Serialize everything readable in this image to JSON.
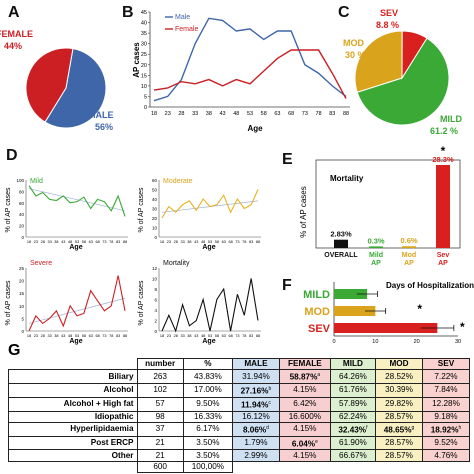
{
  "panels": {
    "A": "A",
    "B": "B",
    "C": "C",
    "D": "D",
    "E": "E",
    "F": "F",
    "G": "G"
  },
  "colors": {
    "male": "#3f66a8",
    "female": "#cc1f24",
    "mild": "#3aa935",
    "mod": "#d9a41c",
    "sev": "#d8201f",
    "black": "#111111"
  },
  "chart_data": [
    {
      "id": "A",
      "type": "pie",
      "labels": [
        "FEMALE",
        "MALE"
      ],
      "values": [
        44,
        56
      ],
      "value_labels": [
        "44%",
        "56%"
      ]
    },
    {
      "id": "B",
      "type": "line",
      "x": [
        18,
        23,
        28,
        33,
        38,
        43,
        48,
        53,
        58,
        63,
        68,
        73,
        78,
        83,
        88
      ],
      "xlabel": "Age",
      "ylabel": "AP cases",
      "ylim": [
        0,
        45
      ],
      "yticks": [
        0,
        5,
        10,
        15,
        20,
        25,
        30,
        35,
        40,
        45
      ],
      "series": [
        {
          "name": "Male",
          "values": [
            3,
            5,
            13,
            30,
            42,
            41,
            36,
            37,
            32,
            36,
            36,
            20,
            16,
            10,
            5
          ]
        },
        {
          "name": "Female",
          "values": [
            8,
            9,
            12,
            11,
            13,
            10,
            13,
            11,
            17,
            23,
            27,
            27,
            27,
            16,
            4
          ]
        }
      ],
      "legend": "top-left"
    },
    {
      "id": "C",
      "type": "pie",
      "labels": [
        "MILD",
        "MOD",
        "SEV"
      ],
      "values": [
        61.2,
        30,
        8.8
      ],
      "value_labels": [
        "61.2 %",
        "30 %",
        "8.8 %"
      ]
    },
    {
      "id": "D1",
      "type": "line",
      "title": "Mild",
      "x": [
        18,
        23,
        28,
        33,
        38,
        43,
        48,
        53,
        58,
        63,
        68,
        73,
        78,
        83,
        88
      ],
      "xlabel": "Age",
      "ylabel": "% of AP cases",
      "values": [
        90,
        72,
        78,
        66,
        64,
        72,
        60,
        62,
        70,
        50,
        66,
        62,
        46,
        72,
        36
      ],
      "trend": [
        85,
        46
      ]
    },
    {
      "id": "D2",
      "type": "line",
      "title": "Moderate",
      "x": [
        18,
        23,
        28,
        33,
        38,
        43,
        48,
        53,
        58,
        63,
        68,
        73,
        78,
        83,
        88
      ],
      "xlabel": "Age",
      "ylabel": "% of AP cases",
      "values": [
        20,
        32,
        26,
        34,
        38,
        28,
        40,
        32,
        34,
        44,
        26,
        40,
        30,
        34,
        50
      ],
      "trend": [
        26,
        38
      ]
    },
    {
      "id": "D3",
      "type": "line",
      "title": "Severe",
      "x": [
        18,
        23,
        28,
        33,
        38,
        43,
        48,
        53,
        58,
        63,
        68,
        73,
        78,
        83,
        88
      ],
      "xlabel": "Age",
      "ylabel": "% of AP cases",
      "values": [
        0,
        6,
        3,
        5,
        8,
        2,
        10,
        6,
        7,
        16,
        12,
        8,
        10,
        22,
        8
      ],
      "trend": [
        3,
        13
      ]
    },
    {
      "id": "D4",
      "type": "line",
      "title": "Mortality",
      "x": [
        18,
        23,
        28,
        33,
        38,
        43,
        48,
        53,
        58,
        63,
        68,
        73,
        78,
        83,
        88
      ],
      "xlabel": "Age",
      "ylabel": "% of AP cases",
      "values": [
        0,
        3,
        0,
        5,
        1,
        2,
        6,
        0,
        6,
        8,
        0,
        7,
        3,
        10,
        2
      ]
    },
    {
      "id": "E",
      "type": "bar",
      "title": "Mortality",
      "categories": [
        "OVERALL",
        "Mild AP",
        "Mod AP",
        "Sev AP"
      ],
      "values": [
        2.83,
        0.3,
        0.6,
        28.3
      ],
      "value_labels": [
        "2.83%",
        "0.3%",
        "0.6%",
        "28.3%"
      ],
      "ylabel": "% of AP cases",
      "ylim": [
        0,
        30
      ],
      "star": "*"
    },
    {
      "id": "F",
      "type": "bar",
      "orientation": "horizontal",
      "title": "Days of Hospitalization",
      "categories": [
        "MILD",
        "MOD",
        "SEV"
      ],
      "values": [
        8,
        10,
        25
      ],
      "errors": [
        2.5,
        2.5,
        4
      ],
      "xlim": [
        0,
        30
      ],
      "xticks": [
        0,
        10,
        20,
        30
      ],
      "star": "*"
    }
  ],
  "table": {
    "headers": [
      "",
      "number",
      "%",
      "MALE",
      "FEMALE",
      "MILD",
      "MOD",
      "SEV"
    ],
    "rows": [
      {
        "label": "Biliary",
        "number": "263",
        "pct": "43.83%",
        "male": "31.94%",
        "female": "58.87%",
        "female_sup": "a",
        "mild": "64.26%",
        "mod": "28.52%",
        "sev": "7.22%"
      },
      {
        "label": "Alcohol",
        "number": "102",
        "pct": "17.00%",
        "male": "27.16%",
        "male_sup": "b",
        "female": "4.15%",
        "mild": "61.76%",
        "mod": "30.39%",
        "sev": "7.84%"
      },
      {
        "label": "Alcohol + High fat",
        "number": "57",
        "pct": "9.50%",
        "male": "11.94%",
        "male_sup": "c",
        "female": "6.42%",
        "mild": "57.89%",
        "mod": "29.82%",
        "sev": "12.28%"
      },
      {
        "label": "Idiopathic",
        "number": "98",
        "pct": "16.33%",
        "male": "16.12%",
        "female": "16.600%",
        "mild": "62.24%",
        "mod": "28.57%",
        "sev": "9.18%"
      },
      {
        "label": "Hyperlipidaemia",
        "number": "37",
        "pct": "6.17%",
        "male": "8.06%",
        "male_sup": "d",
        "female": "4.15%",
        "mild": "32.43%",
        "mild_sup": "f",
        "mod": "48.65%",
        "mod_sup": "g",
        "sev": "18.92%",
        "sev_sup": "h"
      },
      {
        "label": "Post ERCP",
        "number": "21",
        "pct": "3.50%",
        "male": "1.79%",
        "female": "6.04%",
        "female_sup": "e",
        "mild": "61.90%",
        "mod": "28.57%",
        "sev": "9.52%"
      },
      {
        "label": "Other",
        "number": "21",
        "pct": "3.50%",
        "male": "2.99%",
        "female": "4.15%",
        "mild": "66.67%",
        "mod": "28.57%",
        "sev": "4.76%"
      }
    ],
    "total": {
      "number": "600",
      "pct": "100,00%"
    }
  }
}
